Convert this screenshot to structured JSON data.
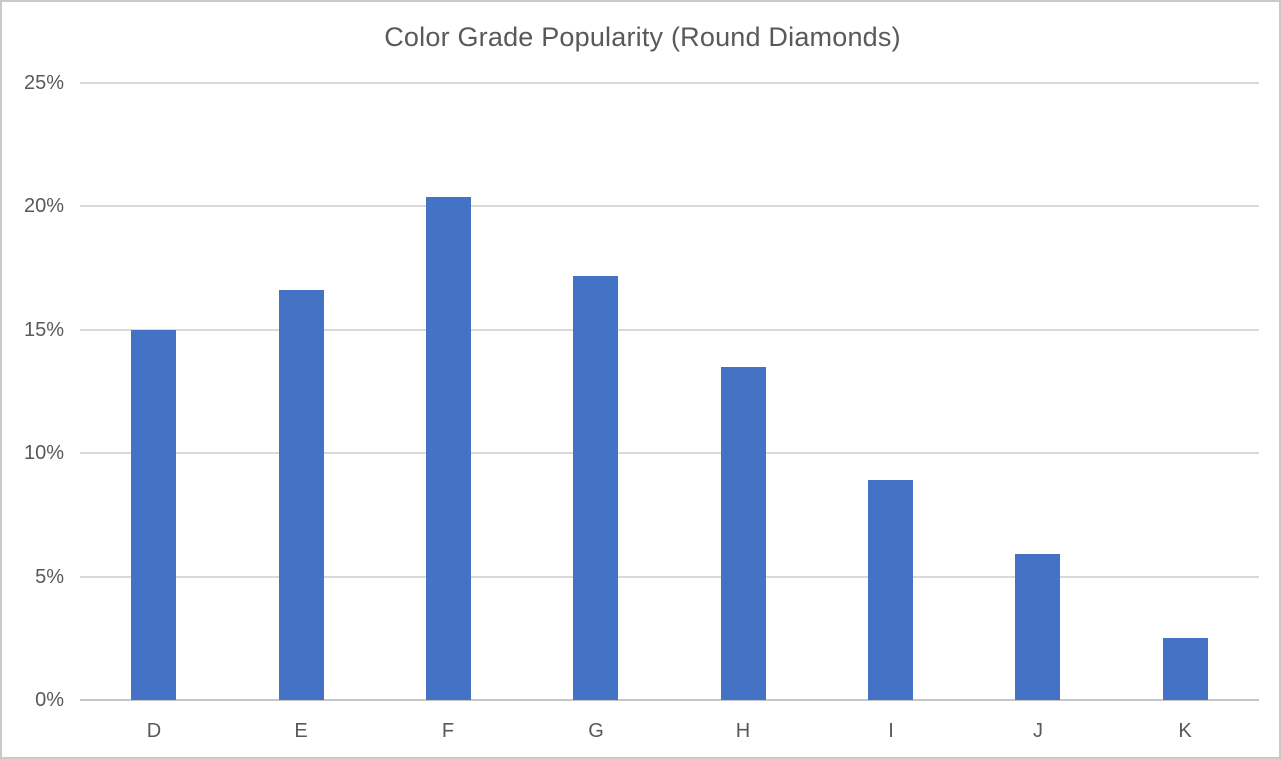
{
  "chart_data": {
    "type": "bar",
    "title": "Color Grade Popularity (Round Diamonds)",
    "categories": [
      "D",
      "E",
      "F",
      "G",
      "H",
      "I",
      "J",
      "K"
    ],
    "values": [
      15.0,
      16.6,
      20.4,
      17.2,
      13.5,
      8.9,
      5.9,
      2.5
    ],
    "series_name": "Popularity",
    "xlabel": "",
    "ylabel": "",
    "ylim": [
      0,
      25
    ],
    "ytick_step": 5,
    "ytick_labels": [
      "0%",
      "5%",
      "10%",
      "15%",
      "20%",
      "25%"
    ],
    "grid": true,
    "legend": false,
    "colors": {
      "bar": "#4472C4",
      "title": "#595959",
      "tick_label": "#595959",
      "gridline": "#D9D9D9",
      "axis_line": "#C6C6C6",
      "border": "#C9C9C9",
      "background": "#FFFFFF"
    }
  }
}
